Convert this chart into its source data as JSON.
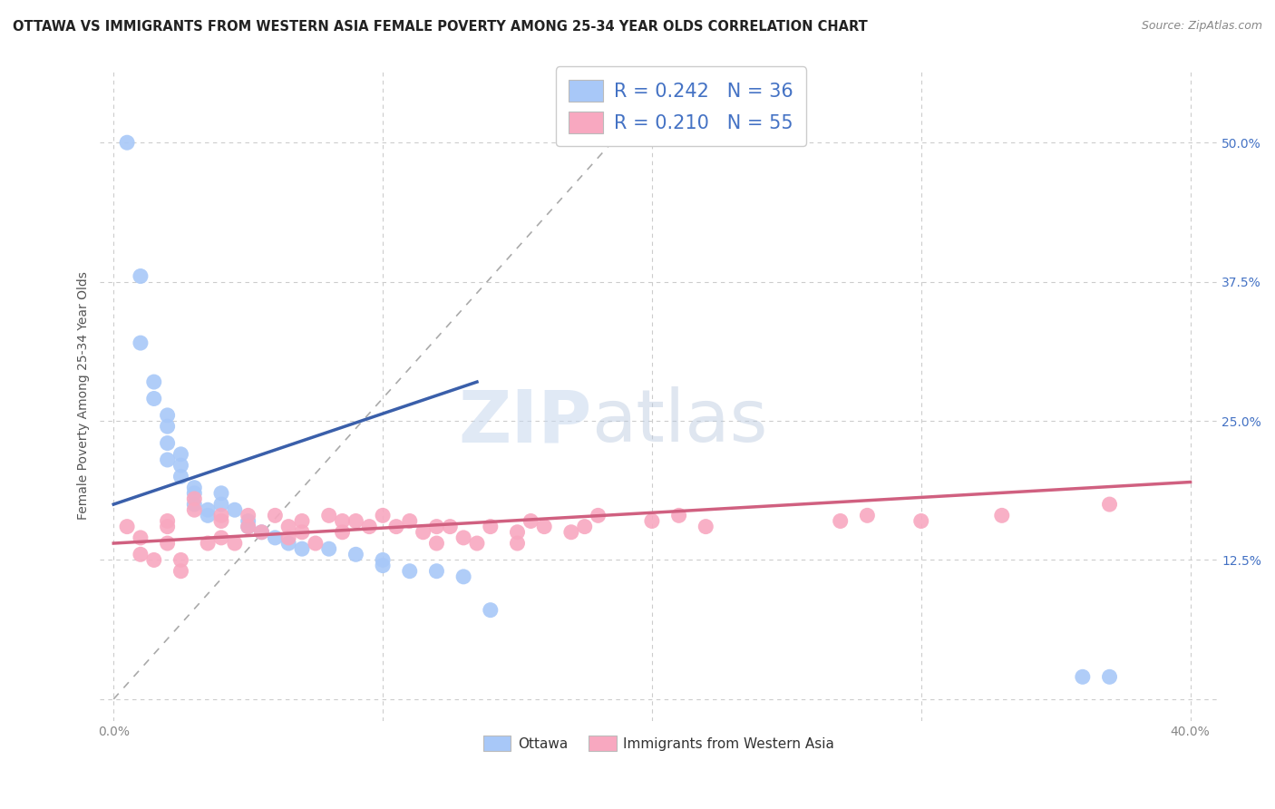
{
  "title": "OTTAWA VS IMMIGRANTS FROM WESTERN ASIA FEMALE POVERTY AMONG 25-34 YEAR OLDS CORRELATION CHART",
  "source": "Source: ZipAtlas.com",
  "ylabel": "Female Poverty Among 25-34 Year Olds",
  "xlim": [
    -0.005,
    0.41
  ],
  "ylim": [
    -0.02,
    0.565
  ],
  "xticks": [
    0.0,
    0.1,
    0.2,
    0.3,
    0.4
  ],
  "xticklabels": [
    "0.0%",
    "",
    "",
    "",
    "40.0%"
  ],
  "yticks": [
    0.0,
    0.125,
    0.25,
    0.375,
    0.5
  ],
  "yticklabels": [
    "",
    "12.5%",
    "25.0%",
    "37.5%",
    "50.0%"
  ],
  "grid_color": "#cccccc",
  "background_color": "#ffffff",
  "legend_R1": "R = 0.242",
  "legend_N1": "N = 36",
  "legend_R2": "R = 0.210",
  "legend_N2": "N = 55",
  "color_ottawa": "#a8c8f8",
  "color_immigrants": "#f8a8c0",
  "color_line_ottawa": "#3a5faa",
  "color_line_immigrants": "#d06080",
  "color_text_blue": "#4472c4",
  "ottawa_x": [
    0.005,
    0.01,
    0.01,
    0.015,
    0.015,
    0.02,
    0.02,
    0.02,
    0.02,
    0.025,
    0.025,
    0.025,
    0.03,
    0.03,
    0.03,
    0.035,
    0.035,
    0.04,
    0.04,
    0.045,
    0.05,
    0.05,
    0.055,
    0.06,
    0.065,
    0.07,
    0.08,
    0.09,
    0.1,
    0.1,
    0.11,
    0.12,
    0.13,
    0.14,
    0.36,
    0.37
  ],
  "ottawa_y": [
    0.5,
    0.38,
    0.32,
    0.285,
    0.27,
    0.255,
    0.245,
    0.23,
    0.215,
    0.22,
    0.21,
    0.2,
    0.19,
    0.185,
    0.175,
    0.17,
    0.165,
    0.185,
    0.175,
    0.17,
    0.16,
    0.155,
    0.15,
    0.145,
    0.14,
    0.135,
    0.135,
    0.13,
    0.125,
    0.12,
    0.115,
    0.115,
    0.11,
    0.08,
    0.02,
    0.02
  ],
  "immigrants_x": [
    0.005,
    0.01,
    0.01,
    0.015,
    0.02,
    0.02,
    0.02,
    0.025,
    0.025,
    0.03,
    0.03,
    0.035,
    0.04,
    0.04,
    0.04,
    0.045,
    0.05,
    0.05,
    0.055,
    0.06,
    0.065,
    0.065,
    0.07,
    0.07,
    0.075,
    0.08,
    0.085,
    0.085,
    0.09,
    0.095,
    0.1,
    0.105,
    0.11,
    0.115,
    0.12,
    0.12,
    0.125,
    0.13,
    0.135,
    0.14,
    0.15,
    0.15,
    0.155,
    0.16,
    0.17,
    0.175,
    0.18,
    0.2,
    0.21,
    0.22,
    0.27,
    0.28,
    0.3,
    0.33,
    0.37
  ],
  "immigrants_y": [
    0.155,
    0.145,
    0.13,
    0.125,
    0.16,
    0.155,
    0.14,
    0.125,
    0.115,
    0.18,
    0.17,
    0.14,
    0.165,
    0.16,
    0.145,
    0.14,
    0.165,
    0.155,
    0.15,
    0.165,
    0.155,
    0.145,
    0.16,
    0.15,
    0.14,
    0.165,
    0.16,
    0.15,
    0.16,
    0.155,
    0.165,
    0.155,
    0.16,
    0.15,
    0.155,
    0.14,
    0.155,
    0.145,
    0.14,
    0.155,
    0.15,
    0.14,
    0.16,
    0.155,
    0.15,
    0.155,
    0.165,
    0.16,
    0.165,
    0.155,
    0.16,
    0.165,
    0.16,
    0.165,
    0.175
  ],
  "dashed_line_x": [
    0.0,
    0.185
  ],
  "dashed_line_y": [
    0.0,
    0.5
  ],
  "ottawa_line_x": [
    0.0,
    0.135
  ],
  "ottawa_line_y_start": 0.175,
  "ottawa_line_y_end": 0.285,
  "imm_line_x": [
    0.0,
    0.4
  ],
  "imm_line_y_start": 0.14,
  "imm_line_y_end": 0.195
}
